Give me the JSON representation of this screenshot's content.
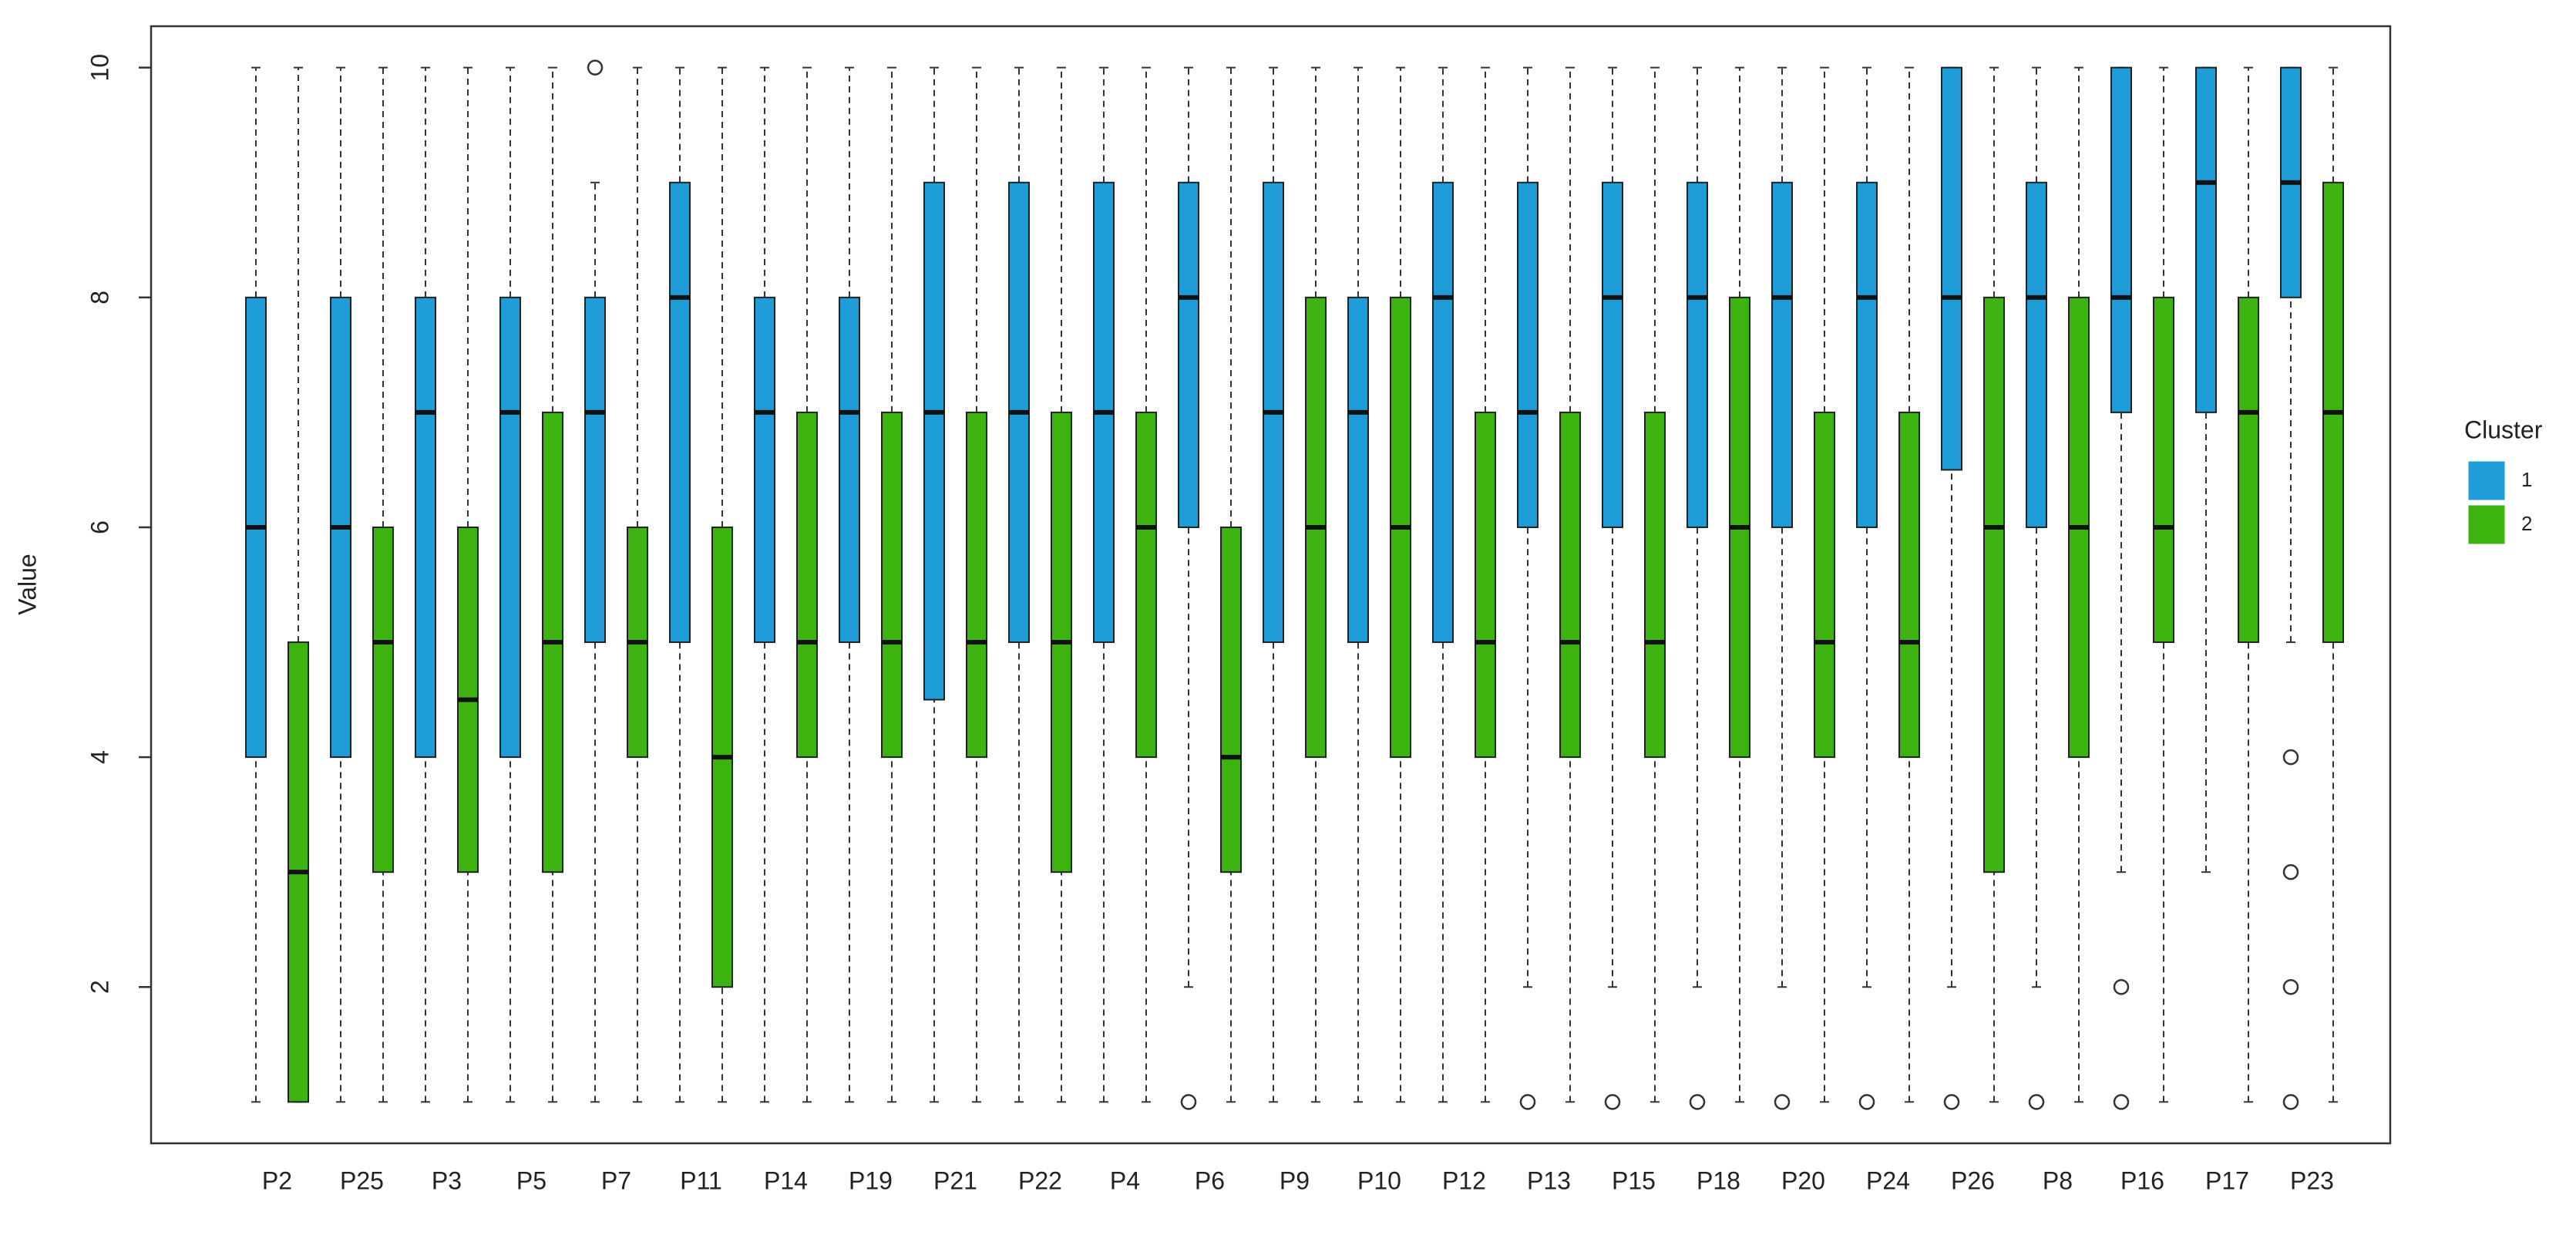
{
  "chart_data": {
    "type": "boxplot",
    "y_label": "Value",
    "legend_title": "Cluster",
    "categories": [
      "P2",
      "P25",
      "P3",
      "P5",
      "P7",
      "P11",
      "P14",
      "P19",
      "P21",
      "P22",
      "P4",
      "P6",
      "P9",
      "P10",
      "P12",
      "P13",
      "P15",
      "P18",
      "P20",
      "P24",
      "P26",
      "P8",
      "P16",
      "P17",
      "P23"
    ],
    "ylim": [
      0.64,
      10.36
    ],
    "yticks": [
      2,
      4,
      6,
      8,
      10
    ],
    "series": [
      {
        "name": "1",
        "color": "#1e9cd7",
        "low": [
          1,
          1,
          1,
          1,
          1,
          1,
          1,
          1,
          1,
          1,
          1,
          2,
          1,
          1,
          1,
          2,
          2,
          2,
          2,
          2,
          2,
          2,
          3,
          3,
          5
        ],
        "q1": [
          4,
          4,
          4,
          4,
          5,
          5,
          5,
          5,
          4.5,
          5,
          5,
          6,
          5,
          5,
          5,
          6,
          6,
          6,
          6,
          6,
          6.5,
          6,
          7,
          7,
          8
        ],
        "median": [
          6,
          6,
          7,
          7,
          7,
          8,
          7,
          7,
          7,
          7,
          7,
          8,
          7,
          7,
          8,
          7,
          8,
          8,
          8,
          8,
          8,
          8,
          8,
          9,
          9
        ],
        "q3": [
          8,
          8,
          8,
          8,
          8,
          9,
          8,
          8,
          9,
          9,
          9,
          9,
          9,
          8,
          9,
          9,
          9,
          9,
          9,
          9,
          10,
          9,
          10,
          10,
          10
        ],
        "high": [
          10,
          10,
          10,
          10,
          9,
          10,
          10,
          10,
          10,
          10,
          10,
          10,
          10,
          10,
          10,
          10,
          10,
          10,
          10,
          10,
          10,
          10,
          10,
          10,
          10
        ],
        "outliers": [
          [],
          [],
          [],
          [],
          [
            10
          ],
          [],
          [],
          [],
          [],
          [],
          [],
          [
            1
          ],
          [],
          [],
          [],
          [
            1
          ],
          [
            1
          ],
          [
            1
          ],
          [
            1
          ],
          [
            1
          ],
          [
            1
          ],
          [
            1
          ],
          [
            2,
            1
          ],
          [],
          [
            4,
            3,
            2,
            1
          ]
        ]
      },
      {
        "name": "2",
        "color": "#3cb30f",
        "low": [
          1,
          1,
          1,
          1,
          1,
          1,
          1,
          1,
          1,
          1,
          1,
          1,
          1,
          1,
          1,
          1,
          1,
          1,
          1,
          1,
          1,
          1,
          1,
          1,
          1
        ],
        "q1": [
          1,
          3,
          3,
          3,
          4,
          2,
          4,
          4,
          4,
          3,
          4,
          3,
          4,
          4,
          4,
          4,
          4,
          4,
          4,
          4,
          3,
          4,
          5,
          5,
          5
        ],
        "median": [
          3,
          5,
          4.5,
          5,
          5,
          4,
          5,
          5,
          5,
          5,
          6,
          4,
          6,
          6,
          5,
          5,
          5,
          6,
          5,
          5,
          6,
          6,
          6,
          7,
          7
        ],
        "q3": [
          5,
          6,
          6,
          7,
          6,
          6,
          7,
          7,
          7,
          7,
          7,
          6,
          8,
          8,
          7,
          7,
          7,
          8,
          7,
          7,
          8,
          8,
          8,
          8,
          9
        ],
        "high": [
          10,
          10,
          10,
          10,
          10,
          10,
          10,
          10,
          10,
          10,
          10,
          10,
          10,
          10,
          10,
          10,
          10,
          10,
          10,
          10,
          10,
          10,
          10,
          10,
          10
        ],
        "outliers": [
          [],
          [],
          [],
          [],
          [],
          [],
          [],
          [],
          [],
          [],
          [],
          [],
          [],
          [],
          [],
          [],
          [],
          [],
          [],
          [],
          [],
          [],
          [],
          [],
          []
        ]
      }
    ]
  }
}
